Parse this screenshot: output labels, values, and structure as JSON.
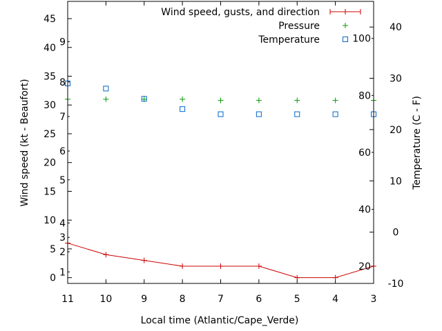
{
  "chart_data": {
    "type": "line",
    "xlabel": "Local time (Atlantic/Cape_Verde)",
    "ylabel_left": "Wind speed (kt - Beaufort)",
    "ylabel_right": "Temperature (C - F)",
    "x_ticks": [
      "11",
      "10",
      "9",
      "8",
      "7",
      "6",
      "5",
      "4",
      "3"
    ],
    "y_left": {
      "range": [
        -1,
        48
      ],
      "ticks": [
        0,
        5,
        10,
        15,
        20,
        25,
        30,
        35,
        40,
        45
      ]
    },
    "beaufort": {
      "labels": [
        "1",
        "2",
        "3",
        "4",
        "5",
        "6",
        "7",
        "8",
        "9"
      ],
      "kt": [
        1,
        4.5,
        7,
        9.5,
        17,
        22,
        28,
        34,
        41
      ]
    },
    "y_right": {
      "range": [
        -10,
        45
      ],
      "ticks": [
        -10,
        0,
        10,
        20,
        30,
        40
      ]
    },
    "fahrenheit": {
      "labels": [
        "20",
        "40",
        "60",
        "80",
        "100"
      ],
      "f": [
        20,
        40,
        60,
        80,
        100
      ]
    },
    "legend_position": "top-right",
    "series": [
      {
        "name": "Wind speed, gusts, and direction",
        "marker": "line-plus",
        "color": "#cc0000",
        "values": [
          6,
          4,
          3,
          2,
          2,
          2,
          0,
          0,
          2
        ]
      },
      {
        "name": "Pressure",
        "marker": "plus",
        "color": "#009900",
        "values": [
          31,
          31,
          31,
          31,
          30.8,
          30.8,
          30.8,
          30.8,
          30.8
        ]
      },
      {
        "name": "Temperature",
        "marker": "open-square",
        "color": "#0066cc",
        "axis": "right",
        "values": [
          29,
          28,
          26,
          24,
          23,
          23,
          23,
          23,
          23
        ]
      }
    ]
  }
}
